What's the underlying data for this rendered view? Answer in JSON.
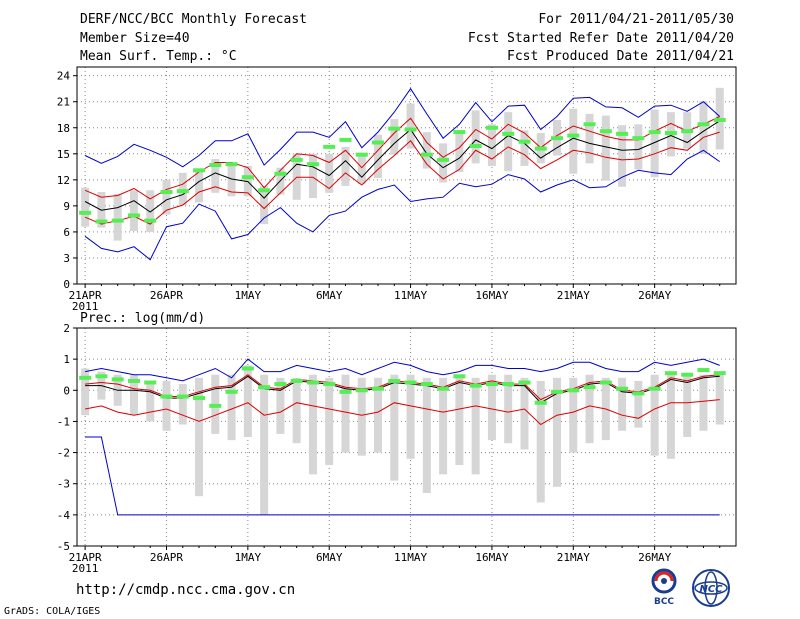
{
  "header": {
    "left_line1": "DERF/NCC/BCC Monthly Forecast",
    "left_line2": "Member Size=40",
    "left_line3": "Mean Surf. Temp.: °C",
    "right_line1": "For 2011/04/21-2011/05/30",
    "right_line2": "Fcst Started Refer Date 2011/04/20",
    "right_line3": "Fcst Produced Date 2011/04/21"
  },
  "panel2_title": "Prec.: log(mm/d)",
  "footer": {
    "url": "http://cmdp.ncc.cma.gov.cn",
    "credit": "GrADS: COLA/IGES",
    "logo_bcc": "BCC",
    "logo_ncc": "NCC"
  },
  "colors": {
    "envelope": "#0000cc",
    "spread": "#dd0000",
    "mean": "#000000",
    "box": "#d6d6d6",
    "observed": "#55ee55",
    "grid": "#888888"
  },
  "chart_data": [
    {
      "type": "line",
      "title": "Mean Surf. Temp.: °C",
      "x_tick_labels": [
        "21APR",
        "26APR",
        "1MAY",
        "6MAY",
        "11MAY",
        "16MAY",
        "21MAY",
        "26MAY"
      ],
      "x_year_label": "2011",
      "days": 40,
      "ylim": [
        0,
        25
      ],
      "yticks": [
        "0",
        "3",
        "6",
        "9",
        "12",
        "15",
        "18",
        "21",
        "24"
      ],
      "series": [
        {
          "name": "max",
          "values": [
            14.8,
            13.9,
            14.7,
            16.1,
            15.4,
            14.6,
            13.5,
            14.8,
            16.5,
            16.5,
            17.3,
            13.7,
            15.5,
            17.5,
            17.5,
            16.9,
            18.7,
            15.7,
            17.5,
            19.8,
            22.5,
            19.6,
            16.8,
            18.4,
            20.9,
            18.7,
            20.5,
            20.6,
            17.8,
            19.3,
            21.4,
            21.5,
            20.4,
            20.3,
            19.2,
            20.5,
            20.6,
            19.9,
            21.0,
            19.3
          ]
        },
        {
          "name": "upper",
          "values": [
            10.8,
            10.0,
            10.2,
            11.0,
            9.8,
            10.9,
            11.5,
            12.9,
            14.0,
            14.0,
            13.4,
            11.1,
            13.1,
            15.0,
            14.8,
            14.0,
            15.4,
            13.4,
            15.4,
            17.4,
            19.1,
            16.3,
            14.6,
            15.7,
            17.8,
            16.7,
            18.4,
            17.4,
            15.7,
            17.1,
            18.2,
            17.6,
            17.0,
            16.6,
            16.6,
            17.6,
            18.5,
            17.6,
            18.4,
            19.3
          ]
        },
        {
          "name": "mean",
          "values": [
            9.5,
            8.5,
            8.8,
            9.6,
            8.3,
            9.7,
            10.3,
            11.8,
            12.8,
            12.1,
            11.8,
            9.9,
            11.9,
            13.8,
            13.5,
            12.5,
            14.2,
            12.3,
            14.3,
            16.2,
            17.8,
            15.0,
            13.4,
            14.5,
            16.6,
            15.6,
            17.1,
            16.2,
            14.5,
            15.7,
            16.8,
            16.2,
            15.8,
            15.4,
            15.5,
            16.3,
            17.1,
            16.3,
            17.6,
            18.8
          ]
        },
        {
          "name": "lower",
          "values": [
            7.7,
            6.9,
            7.3,
            7.8,
            6.9,
            8.5,
            9.1,
            10.6,
            11.2,
            10.6,
            10.5,
            8.7,
            10.5,
            12.3,
            12.3,
            11.0,
            12.8,
            11.4,
            13.2,
            14.8,
            16.5,
            13.8,
            12.1,
            13.2,
            15.4,
            14.4,
            15.8,
            14.9,
            13.3,
            14.3,
            15.4,
            15.1,
            14.6,
            14.3,
            14.4,
            15.0,
            15.7,
            15.4,
            16.9,
            17.5
          ]
        },
        {
          "name": "min",
          "values": [
            5.5,
            4.1,
            3.7,
            4.3,
            2.8,
            6.6,
            7.0,
            9.2,
            8.4,
            5.2,
            5.7,
            7.6,
            8.8,
            7.0,
            6.0,
            7.9,
            8.4,
            10.0,
            10.9,
            11.4,
            9.5,
            9.8,
            10.0,
            11.6,
            11.2,
            11.5,
            12.6,
            12.1,
            10.6,
            11.4,
            12.0,
            11.1,
            11.2,
            12.3,
            13.1,
            12.8,
            12.6,
            14.4,
            15.4,
            14.1
          ]
        },
        {
          "name": "box_high",
          "values": [
            11.1,
            10.6,
            10.4,
            10.8,
            10.8,
            12.0,
            12.8,
            13.3,
            14.4,
            14.0,
            13.6,
            11.3,
            13.4,
            15.0,
            15.0,
            15.0,
            15.8,
            15.0,
            17.2,
            19.0,
            20.8,
            17.5,
            16.2,
            17.6,
            20.0,
            18.4,
            19.8,
            17.7,
            17.4,
            18.9,
            20.2,
            19.6,
            19.4,
            18.3,
            18.4,
            20.1,
            19.8,
            19.8,
            21.1,
            22.6
          ]
        },
        {
          "name": "box_low",
          "values": [
            6.6,
            6.5,
            5.0,
            6.1,
            6.0,
            8.0,
            9.1,
            9.4,
            10.5,
            10.1,
            10.1,
            6.9,
            10.3,
            9.7,
            9.9,
            10.5,
            11.3,
            11.5,
            12.2,
            14.9,
            15.6,
            13.3,
            11.7,
            12.9,
            13.9,
            13.6,
            13.0,
            13.6,
            13.9,
            14.8,
            12.7,
            13.9,
            11.9,
            11.2,
            13.2,
            12.3,
            14.7,
            15.6,
            15.0,
            15.5
          ]
        },
        {
          "name": "observed",
          "values": [
            8.2,
            7.2,
            7.3,
            7.9,
            7.3,
            10.6,
            10.7,
            13.1,
            13.7,
            13.8,
            12.3,
            10.8,
            12.7,
            14.3,
            13.8,
            15.8,
            16.6,
            14.9,
            16.3,
            17.9,
            17.8,
            14.9,
            14.3,
            17.5,
            15.9,
            18.0,
            17.3,
            16.4,
            15.6,
            16.8,
            17.1,
            18.4,
            17.6,
            17.3,
            16.8,
            17.5,
            17.4,
            17.6,
            18.4,
            18.9
          ]
        }
      ]
    },
    {
      "type": "line",
      "title": "Prec.: log(mm/d)",
      "x_tick_labels": [
        "21APR",
        "26APR",
        "1MAY",
        "6MAY",
        "11MAY",
        "16MAY",
        "21MAY",
        "26MAY"
      ],
      "x_year_label": "2011",
      "days": 40,
      "ylim": [
        -5,
        2
      ],
      "yticks": [
        "-5",
        "-4",
        "-3",
        "-2",
        "-1",
        "0",
        "1",
        "2"
      ],
      "series": [
        {
          "name": "max",
          "values": [
            0.6,
            0.7,
            0.6,
            0.5,
            0.5,
            0.4,
            0.3,
            0.5,
            0.7,
            0.4,
            1.0,
            0.6,
            0.6,
            0.8,
            0.7,
            0.6,
            0.7,
            0.5,
            0.7,
            0.9,
            0.8,
            0.6,
            0.5,
            0.6,
            0.8,
            0.8,
            0.7,
            0.7,
            0.6,
            0.7,
            0.9,
            0.9,
            0.7,
            0.6,
            0.6,
            0.9,
            0.8,
            0.9,
            1.0,
            0.8
          ]
        },
        {
          "name": "upper",
          "values": [
            0.2,
            0.25,
            0.2,
            0.05,
            0.0,
            -0.2,
            -0.2,
            -0.05,
            0.1,
            0.15,
            0.5,
            0.1,
            0.05,
            0.35,
            0.3,
            0.25,
            0.1,
            0.05,
            0.1,
            0.3,
            0.25,
            0.2,
            0.1,
            0.3,
            0.2,
            0.3,
            0.2,
            0.2,
            -0.3,
            -0.05,
            0.05,
            0.25,
            0.3,
            0.0,
            -0.05,
            0.1,
            0.4,
            0.3,
            0.45,
            0.5
          ]
        },
        {
          "name": "mean",
          "values": [
            0.15,
            0.15,
            0.0,
            0.0,
            -0.05,
            -0.25,
            -0.25,
            -0.1,
            0.05,
            0.1,
            0.45,
            0.05,
            0.0,
            0.3,
            0.25,
            0.2,
            0.05,
            0.0,
            0.05,
            0.25,
            0.2,
            0.15,
            0.05,
            0.25,
            0.15,
            0.25,
            0.15,
            0.15,
            -0.4,
            -0.1,
            0.0,
            0.2,
            0.25,
            -0.05,
            -0.1,
            0.05,
            0.35,
            0.25,
            0.4,
            0.45
          ]
        },
        {
          "name": "lower",
          "values": [
            -0.6,
            -0.5,
            -0.7,
            -0.8,
            -0.7,
            -0.6,
            -0.8,
            -1.0,
            -0.8,
            -0.6,
            -0.4,
            -0.8,
            -0.7,
            -0.4,
            -0.5,
            -0.6,
            -0.7,
            -0.8,
            -0.7,
            -0.4,
            -0.5,
            -0.6,
            -0.7,
            -0.6,
            -0.5,
            -0.6,
            -0.7,
            -0.6,
            -1.1,
            -0.8,
            -0.7,
            -0.5,
            -0.6,
            -0.8,
            -0.9,
            -0.6,
            -0.4,
            -0.4,
            -0.35,
            -0.3
          ]
        },
        {
          "name": "min",
          "values": [
            -1.5,
            -1.5,
            -4.0,
            -4.0,
            -4.0,
            -4.0,
            -4.0,
            -4.0,
            -4.0,
            -4.0,
            -4.0,
            -4.0,
            -4.0,
            -4.0,
            -4.0,
            -4.0,
            -4.0,
            -4.0,
            -4.0,
            -4.0,
            -4.0,
            -4.0,
            -4.0,
            -4.0,
            -4.0,
            -4.0,
            -4.0,
            -4.0,
            -4.0,
            -4.0,
            -4.0,
            -4.0,
            -4.0,
            -4.0,
            -4.0,
            -4.0,
            -4.0,
            -4.0,
            -4.0,
            -4.0
          ]
        },
        {
          "name": "box_high",
          "values": [
            0.7,
            0.6,
            0.5,
            0.5,
            0.3,
            0.3,
            0.2,
            0.4,
            0.5,
            0.5,
            0.8,
            0.5,
            0.4,
            0.4,
            0.5,
            0.4,
            0.5,
            0.4,
            0.4,
            0.5,
            0.5,
            0.4,
            0.4,
            0.5,
            0.4,
            0.5,
            0.5,
            0.4,
            0.3,
            0.4,
            0.4,
            0.5,
            0.4,
            0.4,
            0.3,
            0.5,
            0.6,
            0.5,
            0.5,
            0.6
          ]
        },
        {
          "name": "box_low",
          "values": [
            -0.8,
            -0.3,
            -0.5,
            -0.8,
            -1.0,
            -1.3,
            -1.1,
            -3.4,
            -1.4,
            -1.6,
            -1.5,
            -4.0,
            -1.4,
            -1.7,
            -2.7,
            -2.4,
            -2.0,
            -2.1,
            -2.0,
            -2.9,
            -2.2,
            -3.3,
            -2.7,
            -2.4,
            -2.7,
            -1.6,
            -1.7,
            -1.9,
            -3.6,
            -3.1,
            -2.0,
            -1.7,
            -1.6,
            -1.3,
            -1.2,
            -2.1,
            -2.2,
            -1.5,
            -1.3,
            -1.1
          ]
        },
        {
          "name": "observed",
          "values": [
            0.4,
            0.45,
            0.35,
            0.3,
            0.25,
            -0.2,
            -0.2,
            -0.25,
            -0.5,
            -0.05,
            0.7,
            0.1,
            0.2,
            0.3,
            0.25,
            0.2,
            -0.05,
            0.0,
            0.05,
            0.3,
            0.25,
            0.2,
            0.05,
            0.45,
            0.15,
            0.2,
            0.2,
            0.25,
            -0.4,
            -0.05,
            0.0,
            0.1,
            0.25,
            0.05,
            -0.1,
            0.05,
            0.55,
            0.5,
            0.65,
            0.55
          ]
        }
      ]
    }
  ]
}
